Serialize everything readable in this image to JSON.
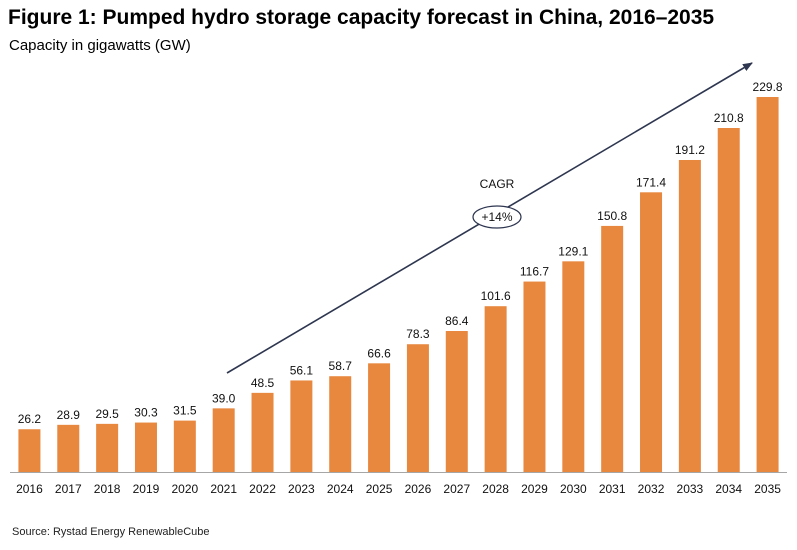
{
  "header": {
    "title": "Figure 1: Pumped hydro storage capacity forecast in China, 2016–2035",
    "subtitle": "Capacity in gigawatts (GW)"
  },
  "footer": {
    "source": "Source: Rystad Energy RenewableCube"
  },
  "chart_data": {
    "type": "bar",
    "title": "Figure 1: Pumped hydro storage capacity forecast in China, 2016–2035",
    "subtitle": "Capacity in gigawatts (GW)",
    "xlabel": "",
    "ylabel": "",
    "ylim": [
      0,
      240
    ],
    "grid": false,
    "legend": "none",
    "bar_color": "#E8883F",
    "axis_color": "#A6A6A6",
    "arrow_color": "#2E3650",
    "categories": [
      "2016",
      "2017",
      "2018",
      "2019",
      "2020",
      "2021",
      "2022",
      "2023",
      "2024",
      "2025",
      "2026",
      "2027",
      "2028",
      "2029",
      "2030",
      "2031",
      "2032",
      "2033",
      "2034",
      "2035"
    ],
    "values": [
      26.2,
      28.9,
      29.5,
      30.3,
      31.5,
      39.0,
      48.5,
      56.1,
      58.7,
      66.6,
      78.3,
      86.4,
      101.6,
      116.7,
      129.1,
      150.8,
      171.4,
      191.2,
      210.8,
      229.8
    ],
    "value_labels": [
      "26.2",
      "28.9",
      "29.5",
      "30.3",
      "31.5",
      "39.0",
      "48.5",
      "56.1",
      "58.7",
      "66.6",
      "78.3",
      "86.4",
      "101.6",
      "116.7",
      "129.1",
      "150.8",
      "171.4",
      "191.2",
      "210.8",
      "229.8"
    ],
    "annotations": {
      "cagr_label": "CAGR",
      "cagr_value": "+14%"
    }
  }
}
